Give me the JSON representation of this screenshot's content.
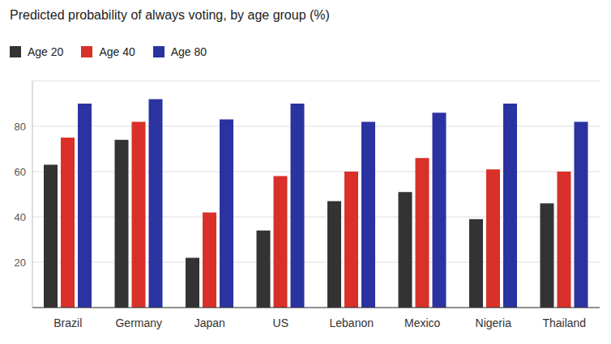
{
  "chart_data": {
    "type": "bar",
    "title": "Predicted probability of always voting, by age group (%)",
    "categories": [
      "Brazil",
      "Germany",
      "Japan",
      "US",
      "Lebanon",
      "Mexico",
      "Nigeria",
      "Thailand"
    ],
    "series": [
      {
        "name": "Age 20",
        "color": "#333333",
        "values": [
          63,
          74,
          22,
          34,
          47,
          51,
          39,
          46
        ]
      },
      {
        "name": "Age 40",
        "color": "#d9302a",
        "values": [
          75,
          82,
          42,
          58,
          60,
          66,
          61,
          60
        ]
      },
      {
        "name": "Age 80",
        "color": "#2b33a0",
        "values": [
          90,
          92,
          83,
          90,
          82,
          86,
          90,
          82
        ]
      }
    ],
    "ylim": [
      0,
      100
    ],
    "yticks": [
      20,
      40,
      60,
      80
    ],
    "grid": true,
    "legend": "top-left"
  }
}
